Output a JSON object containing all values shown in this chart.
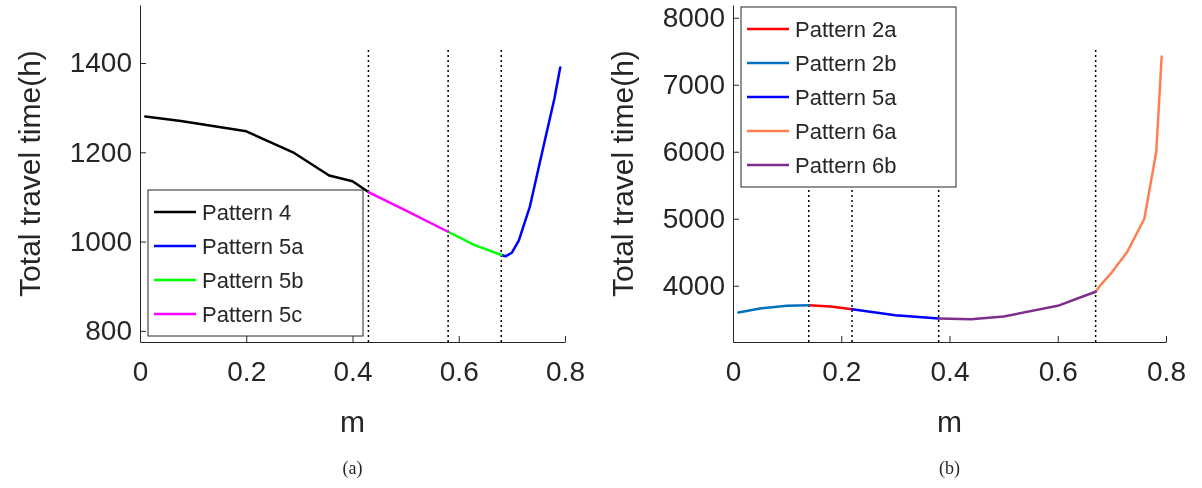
{
  "chart_data": [
    {
      "type": "line",
      "xlabel": "m",
      "ylabel": "Total travel time(h)",
      "xlim": [
        0,
        0.8
      ],
      "ylim": [
        775,
        1530
      ],
      "xticks": [
        0,
        0.2,
        0.4,
        0.6,
        0.8
      ],
      "yticks": [
        800,
        1000,
        1200,
        1400
      ],
      "legend": "bottom left",
      "grid": false,
      "line_style": "solid",
      "marker": "none",
      "annotations": [
        "(a)"
      ],
      "ref_lines": [
        {
          "axis": "x",
          "value": 0.43,
          "color": "#000000",
          "line_style": "dotted"
        },
        {
          "axis": "x",
          "value": 0.58,
          "color": "#000000",
          "line_style": "dotted"
        },
        {
          "axis": "x",
          "value": 0.68,
          "color": "#000000",
          "line_style": "dotted"
        }
      ],
      "series": [
        {
          "name": "Pattern 4",
          "color": "#000000",
          "x": [
            0.01,
            0.077,
            0.2,
            0.288,
            0.356,
            0.4,
            0.43
          ],
          "values": [
            1280,
            1270,
            1247,
            1200,
            1148,
            1135,
            1111
          ]
        },
        {
          "name": "Pattern 5a",
          "color": "#0000ff",
          "x": [
            0.68,
            0.688,
            0.7,
            0.713,
            0.734,
            0.757,
            0.78,
            0.791
          ],
          "values": [
            970,
            967,
            975,
            1002,
            1079,
            1200,
            1320,
            1390
          ]
        },
        {
          "name": "Pattern 5b",
          "color": "#00ff00",
          "x": [
            0.58,
            0.63,
            0.68
          ],
          "values": [
            1022,
            992,
            970
          ]
        },
        {
          "name": "Pattern 5c",
          "color": "#ff00ff",
          "x": [
            0.43,
            0.5,
            0.58
          ],
          "values": [
            1111,
            1070,
            1022
          ]
        }
      ]
    },
    {
      "type": "line",
      "xlabel": "m",
      "ylabel": "Total travel time(h)",
      "xlim": [
        0,
        0.8
      ],
      "ylim": [
        3160,
        8190
      ],
      "xticks": [
        0,
        0.2,
        0.4,
        0.6,
        0.8
      ],
      "yticks": [
        4000,
        5000,
        6000,
        7000,
        8000
      ],
      "legend": "top left",
      "grid": false,
      "line_style": "solid",
      "marker": "none",
      "annotations": [
        "(b)"
      ],
      "ref_lines": [
        {
          "axis": "x",
          "value": 0.14,
          "color": "#000000",
          "line_style": "dotted"
        },
        {
          "axis": "x",
          "value": 0.22,
          "color": "#000000",
          "line_style": "dotted"
        },
        {
          "axis": "x",
          "value": 0.38,
          "color": "#000000",
          "line_style": "dotted"
        },
        {
          "axis": "x",
          "value": 0.67,
          "color": "#000000",
          "line_style": "dotted"
        }
      ],
      "series": [
        {
          "name": "Pattern 2a",
          "color": "#ff0000",
          "x": [
            0.14,
            0.18,
            0.22
          ],
          "values": [
            3710,
            3690,
            3650
          ]
        },
        {
          "name": "Pattern 2b",
          "color": "#0072bd",
          "x": [
            0.01,
            0.05,
            0.1,
            0.14
          ],
          "values": [
            3600,
            3660,
            3700,
            3710
          ]
        },
        {
          "name": "Pattern 5a",
          "color": "#0000ff",
          "x": [
            0.22,
            0.3,
            0.38
          ],
          "values": [
            3650,
            3560,
            3510
          ]
        },
        {
          "name": "Pattern 6a",
          "color": "#ff7f50",
          "x": [
            0.67,
            0.678,
            0.7,
            0.728,
            0.76,
            0.782,
            0.792
          ],
          "values": [
            3910,
            4000,
            4200,
            4500,
            5000,
            6000,
            7420
          ]
        },
        {
          "name": "Pattern 6b",
          "color": "#7e2f8e",
          "x": [
            0.38,
            0.44,
            0.5,
            0.6,
            0.65,
            0.67
          ],
          "values": [
            3510,
            3500,
            3540,
            3700,
            3850,
            3910
          ]
        }
      ]
    }
  ]
}
